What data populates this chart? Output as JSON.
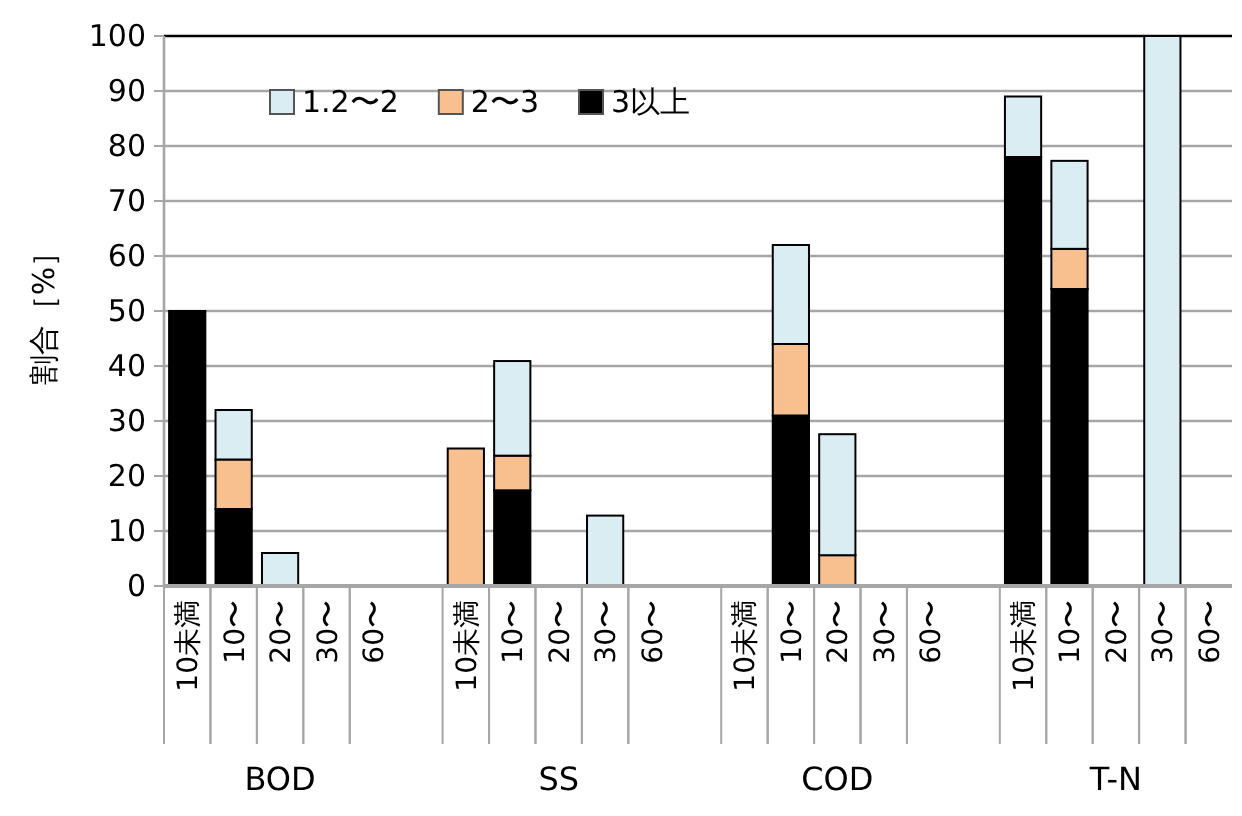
{
  "chart_data": {
    "type": "bar",
    "stacked": true,
    "ylabel": "割合［%］",
    "categories": [
      "10未満",
      "10〜",
      "20〜",
      "30〜",
      "60〜",
      null,
      "10未満",
      "10〜",
      "20〜",
      "30〜",
      "60〜",
      null,
      "10未満",
      "10〜",
      "20〜",
      "30〜",
      "60〜",
      null,
      "10未満",
      "10〜",
      "20〜",
      "30〜",
      "60〜"
    ],
    "series": [
      {
        "name": "3以上",
        "color": "#000000",
        "values": [
          50,
          14,
          0,
          0,
          0,
          null,
          0,
          17.4,
          0,
          0,
          0,
          null,
          0,
          31,
          0,
          0,
          0,
          null,
          78,
          54,
          0,
          0,
          0
        ]
      },
      {
        "name": "2〜3",
        "color": "#f9c08f",
        "values": [
          0,
          9,
          0,
          0,
          0,
          null,
          25,
          6.3,
          0,
          0,
          0,
          null,
          0,
          13,
          5.6,
          0,
          0,
          null,
          0,
          7.3,
          0,
          0,
          0
        ]
      },
      {
        "name": "1.2〜2",
        "color": "#daedf3",
        "values": [
          0,
          9,
          6,
          0,
          0,
          null,
          0,
          17.2,
          0,
          12.8,
          0,
          null,
          0,
          18,
          22,
          0,
          0,
          null,
          11,
          16,
          0,
          100,
          0
        ]
      }
    ],
    "ylim": [
      0,
      100
    ],
    "yticks": [
      0,
      10,
      20,
      30,
      40,
      50,
      60,
      70,
      80,
      90,
      100
    ],
    "grid": "y",
    "legend": "top left",
    "annotations": [
      "BOD",
      "SS",
      "COD",
      "T-N"
    ]
  }
}
